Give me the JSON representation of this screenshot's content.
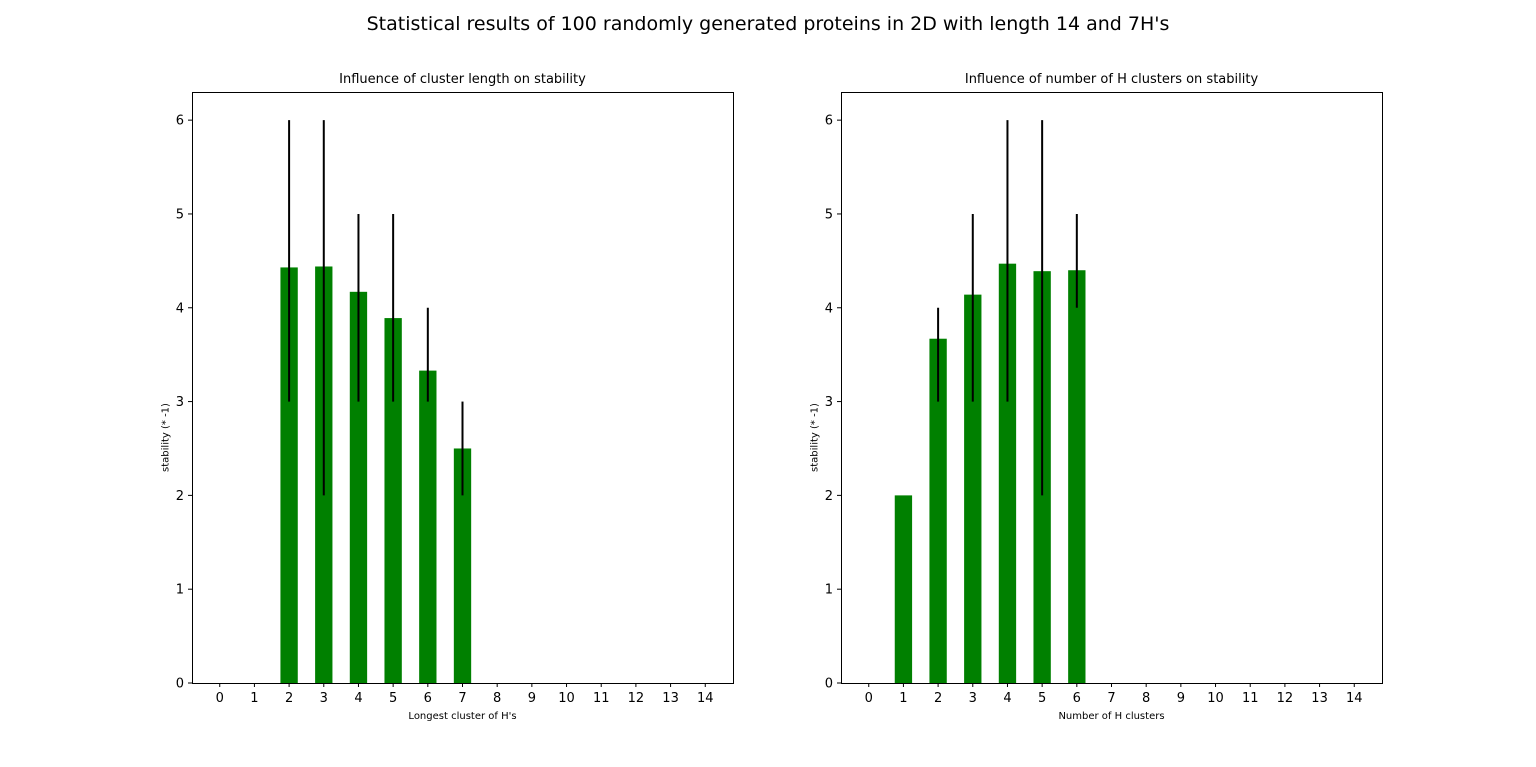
{
  "figure": {
    "title": "Statistical results of 100 randomly generated proteins in 2D with length 14 and 7H's"
  },
  "colors": {
    "bar": "#008000",
    "errorbar": "#000000",
    "axis": "#000000",
    "background": "#ffffff"
  },
  "chart_data": [
    {
      "type": "bar",
      "title": "Influence of cluster length on stability",
      "xlabel": "Longest cluster of H's",
      "ylabel": "stability (* -1)",
      "categories": [
        "0",
        "1",
        "2",
        "3",
        "4",
        "5",
        "6",
        "7",
        "8",
        "9",
        "10",
        "11",
        "12",
        "13",
        "14"
      ],
      "values": [
        0,
        0,
        4.43,
        4.44,
        4.17,
        3.89,
        3.33,
        2.5,
        0,
        0,
        0,
        0,
        0,
        0,
        0
      ],
      "error_low": [
        null,
        null,
        3,
        2,
        3,
        3,
        3,
        2,
        null,
        null,
        null,
        null,
        null,
        null,
        null
      ],
      "error_high": [
        null,
        null,
        6,
        6,
        5,
        5,
        4,
        3,
        null,
        null,
        null,
        null,
        null,
        null,
        null
      ],
      "ylim": [
        0,
        6.3
      ],
      "yticks": [
        "0",
        "1",
        "2",
        "3",
        "4",
        "5",
        "6"
      ],
      "grid": false
    },
    {
      "type": "bar",
      "title": "Influence of number of H clusters on stability",
      "xlabel": "Number of H clusters",
      "ylabel": "stability (* -1)",
      "categories": [
        "0",
        "1",
        "2",
        "3",
        "4",
        "5",
        "6",
        "7",
        "8",
        "9",
        "10",
        "11",
        "12",
        "13",
        "14"
      ],
      "values": [
        0,
        2.0,
        3.67,
        4.14,
        4.47,
        4.39,
        4.4,
        0,
        0,
        0,
        0,
        0,
        0,
        0,
        0
      ],
      "error_low": [
        null,
        null,
        3,
        3,
        3,
        2,
        4,
        null,
        null,
        null,
        null,
        null,
        null,
        null,
        null
      ],
      "error_high": [
        null,
        null,
        4,
        5,
        6,
        6,
        5,
        null,
        null,
        null,
        null,
        null,
        null,
        null,
        null
      ],
      "ylim": [
        0,
        6.3
      ],
      "yticks": [
        "0",
        "1",
        "2",
        "3",
        "4",
        "5",
        "6"
      ],
      "grid": false
    }
  ]
}
